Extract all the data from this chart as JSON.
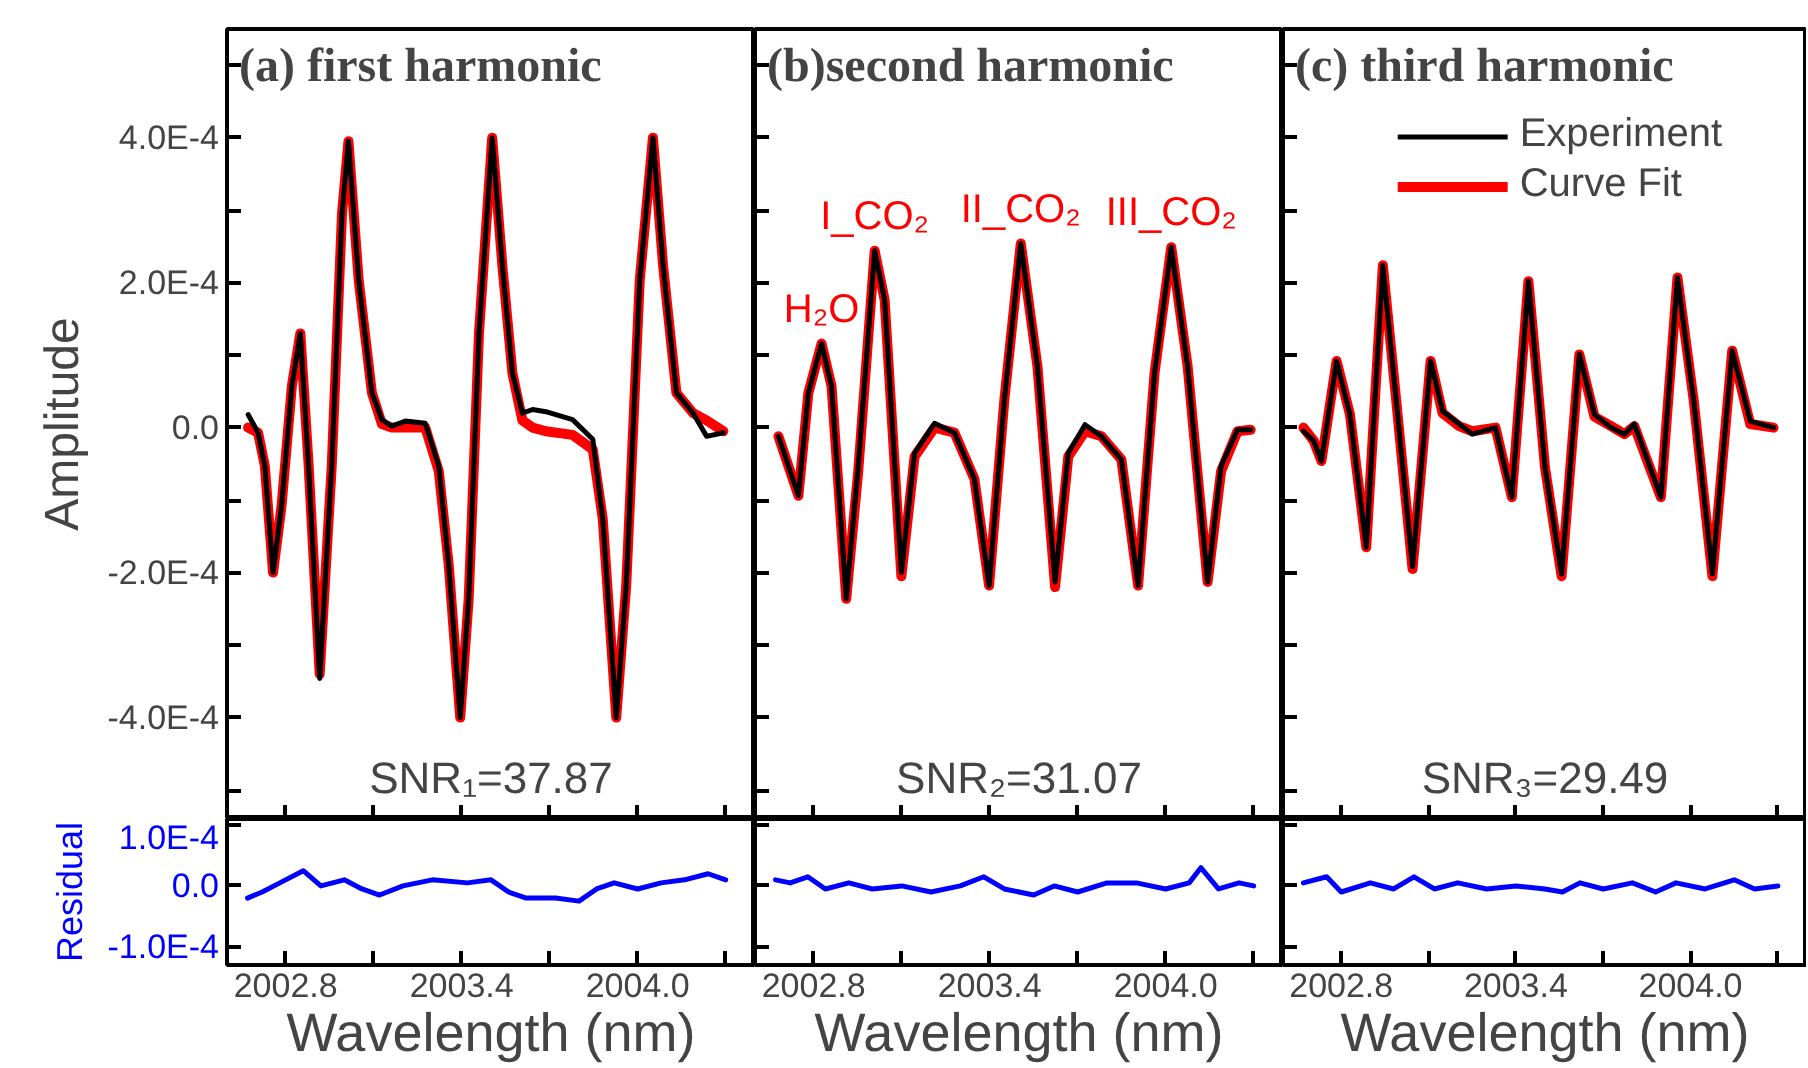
{
  "chart_data": [
    {
      "type": "line",
      "title": "(a) first harmonic",
      "ylabel": "Amplitude",
      "annotations": [
        "SNR₁=37.87"
      ],
      "tick_labels": "y",
      "xlim": [
        2002.6,
        2004.4
      ],
      "ylim": [
        -0.00054,
        0.00055
      ],
      "xticks": [
        {
          "value": 2002.8,
          "label": null
        },
        {
          "value": 2003.1,
          "label": null
        },
        {
          "value": 2003.4,
          "label": null
        },
        {
          "value": 2003.7,
          "label": null
        },
        {
          "value": 2004.0,
          "label": null
        },
        {
          "value": 2004.3,
          "label": null
        }
      ],
      "yticks": [
        {
          "value": -0.0005,
          "label": null
        },
        {
          "value": -0.0004,
          "label": "-4.0E-4"
        },
        {
          "value": -0.0003,
          "label": null
        },
        {
          "value": -0.0002,
          "label": "-2.0E-4"
        },
        {
          "value": -0.0001,
          "label": null
        },
        {
          "value": 0,
          "label": "0.0"
        },
        {
          "value": 0.0001,
          "label": null
        },
        {
          "value": 0.0002,
          "label": "2.0E-4"
        },
        {
          "value": 0.0003,
          "label": null
        },
        {
          "value": 0.0004,
          "label": "4.0E-4"
        },
        {
          "value": 0.0005,
          "label": null
        }
      ],
      "x": [
        2002.672,
        2002.706,
        2002.729,
        2002.757,
        2002.786,
        2002.821,
        2002.85,
        2002.878,
        2002.916,
        2002.957,
        2002.992,
        2003.014,
        2003.049,
        2003.094,
        2003.128,
        2003.162,
        2003.208,
        2003.276,
        2003.322,
        2003.356,
        2003.395,
        2003.424,
        2003.459,
        2003.504,
        2003.539,
        2003.573,
        2003.607,
        2003.642,
        2003.687,
        2003.778,
        2003.847,
        2003.881,
        2003.927,
        2003.961,
        2004.007,
        2004.052,
        2004.087,
        2004.132,
        2004.189,
        2004.235,
        2004.292
      ],
      "series": [
        {
          "color": "#000000",
          "values": [
            1.8e-05,
            -7e-06,
            -5.3e-05,
            -0.0002,
            -0.000108,
            5.7e-05,
            0.00013,
            -5.3e-05,
            -0.000346,
            -5.3e-05,
            0.000295,
            0.000395,
            0.000203,
            4.8e-05,
            1.1e-05,
            2e-06,
            9e-06,
            6e-06,
            -5.3e-05,
            -0.00019,
            -0.0004,
            -0.000236,
            0.00013,
            0.0004,
            0.000222,
            7.5e-05,
            2e-05,
            2.5e-05,
            2.2e-05,
            1.1e-05,
            -1.6e-05,
            -0.000126,
            -0.0004,
            -0.000218,
            0.000203,
            0.0004,
            0.000222,
            4.8e-05,
            2e-05,
            -1.2e-05,
            -7e-06
          ]
        },
        {
          "color": "#ff0000",
          "values": [
            0.0,
            -7e-06,
            -5.3e-05,
            -0.0002,
            -0.000108,
            5.7e-05,
            0.00013,
            -5e-05,
            -0.00034,
            -5.3e-05,
            0.000295,
            0.000395,
            0.000203,
            4.8e-05,
            5e-06,
            0.0,
            0.0,
            0.0,
            -6e-05,
            -0.00019,
            -0.0004,
            -0.000236,
            0.00013,
            0.0004,
            0.000222,
            7.5e-05,
            1e-05,
            0.0,
            -5e-06,
            -1e-05,
            -3e-05,
            -0.000126,
            -0.0004,
            -0.000218,
            0.000203,
            0.0004,
            0.000222,
            4.8e-05,
            2e-05,
            1e-05,
            -5e-06
          ]
        }
      ]
    },
    {
      "type": "line",
      "title": "(b)second harmonic",
      "annotations": [
        "SNR₂=31.07",
        {
          "text": "H₂O",
          "x": 2002.827,
          "y": 0.000116
        },
        {
          "text": "I_CO₂",
          "x": 2003.008,
          "y": 0.000244
        },
        {
          "text": "II_CO₂",
          "x": 2003.506,
          "y": 0.000254
        },
        {
          "text": "III_CO₂",
          "x": 2004.019,
          "y": 0.000249
        }
      ],
      "tick_labels": false,
      "xlim": [
        2002.6,
        2004.4
      ],
      "ylim": [
        -0.00054,
        0.00055
      ],
      "xticks": [
        {
          "value": 2002.8,
          "label": null
        },
        {
          "value": 2003.1,
          "label": null
        },
        {
          "value": 2003.4,
          "label": null
        },
        {
          "value": 2003.7,
          "label": null
        },
        {
          "value": 2004.0,
          "label": null
        },
        {
          "value": 2004.3,
          "label": null
        }
      ],
      "yticks": [
        {
          "value": -0.0005,
          "label": null
        },
        {
          "value": -0.0004,
          "label": null
        },
        {
          "value": -0.0003,
          "label": null
        },
        {
          "value": -0.0002,
          "label": null
        },
        {
          "value": -0.0001,
          "label": null
        },
        {
          "value": 0,
          "label": null
        },
        {
          "value": 0.0001,
          "label": null
        },
        {
          "value": 0.0002,
          "label": null
        },
        {
          "value": 0.0003,
          "label": null
        },
        {
          "value": 0.0004,
          "label": null
        },
        {
          "value": 0.0005,
          "label": null
        }
      ],
      "x": [
        2002.68,
        2002.714,
        2002.748,
        2002.782,
        2002.827,
        2002.861,
        2002.911,
        2002.952,
        2003.008,
        2003.042,
        2003.099,
        2003.144,
        2003.212,
        2003.28,
        2003.348,
        2003.398,
        2003.45,
        2003.506,
        2003.563,
        2003.623,
        2003.668,
        2003.725,
        2003.781,
        2003.849,
        2003.906,
        2003.962,
        2004.019,
        2004.075,
        2004.143,
        2004.189,
        2004.245,
        2004.29
      ],
      "series": [
        {
          "color": "#000000",
          "values": [
            -1.2e-05,
            -5.3e-05,
            -9.4e-05,
            4.8e-05,
            0.000116,
            5.7e-05,
            -0.000236,
            -5.3e-05,
            0.000244,
            0.000176,
            -0.0002,
            -3.5e-05,
            6e-06,
            -7e-06,
            -7.1e-05,
            -0.000218,
            3.8e-05,
            0.000254,
            8.4e-05,
            -0.000213,
            -3.5e-05,
            4e-06,
            -1.2e-05,
            -4.4e-05,
            -0.000218,
            7.5e-05,
            0.000249,
            8.4e-05,
            -0.000213,
            -5.3e-05,
            -3e-06,
            -3e-06
          ]
        },
        {
          "color": "#ff0000",
          "values": [
            -1.2e-05,
            -5.3e-05,
            -9.4e-05,
            4.8e-05,
            0.000116,
            5.7e-05,
            -0.000236,
            -6e-05,
            0.000244,
            0.000176,
            -0.000205,
            -4e-05,
            0.0,
            -7e-06,
            -7.1e-05,
            -0.000218,
            3.8e-05,
            0.000254,
            8.4e-05,
            -0.00022,
            -4e-05,
            -5e-06,
            -1.2e-05,
            -4.4e-05,
            -0.000218,
            7.5e-05,
            0.000249,
            8.4e-05,
            -0.000213,
            -6e-05,
            -5e-06,
            -3e-06
          ]
        }
      ]
    },
    {
      "type": "line",
      "title": "(c) third harmonic",
      "annotations": [
        "SNR₃=29.49"
      ],
      "tick_labels": false,
      "legend": "top right",
      "xlim": [
        2002.6,
        2004.4
      ],
      "ylim": [
        -0.00054,
        0.00055
      ],
      "xticks": [
        {
          "value": 2002.8,
          "label": null
        },
        {
          "value": 2003.1,
          "label": null
        },
        {
          "value": 2003.4,
          "label": null
        },
        {
          "value": 2003.7,
          "label": null
        },
        {
          "value": 2004.0,
          "label": null
        },
        {
          "value": 2004.3,
          "label": null
        }
      ],
      "yticks": [
        {
          "value": -0.0005,
          "label": null
        },
        {
          "value": -0.0004,
          "label": null
        },
        {
          "value": -0.0003,
          "label": null
        },
        {
          "value": -0.0002,
          "label": null
        },
        {
          "value": -0.0001,
          "label": null
        },
        {
          "value": 0,
          "label": null
        },
        {
          "value": 0.0001,
          "label": null
        },
        {
          "value": 0.0002,
          "label": null
        },
        {
          "value": 0.0003,
          "label": null
        },
        {
          "value": 0.0004,
          "label": null
        },
        {
          "value": 0.0005,
          "label": null
        }
      ],
      "x": [
        2002.67,
        2002.705,
        2002.732,
        2002.784,
        2002.83,
        2002.886,
        2002.943,
        2002.989,
        2003.045,
        2003.107,
        2003.148,
        2003.205,
        2003.25,
        2003.33,
        2003.386,
        2003.443,
        2003.5,
        2003.557,
        2003.618,
        2003.67,
        2003.727,
        2003.773,
        2003.807,
        2003.898,
        2003.955,
        2004.011,
        2004.075,
        2004.143,
        2004.205,
        2004.285
      ],
      "series": [
        {
          "name": "Experiment",
          "color": "#000000",
          "values": [
            -5e-06,
            -1.8e-05,
            -4.6e-05,
            9.2e-05,
            1.8e-05,
            -0.000165,
            0.000224,
            3.7e-05,
            -0.000192,
            9.2e-05,
            2.3e-05,
            5e-06,
            -9e-06,
            0.0,
            -9.6e-05,
            0.000202,
            -5.5e-05,
            -0.000202,
            0.000101,
            1.8e-05,
            0.0,
            -9e-06,
            5e-06,
            -9.6e-05,
            0.000207,
            3.7e-05,
            -0.000202,
            0.000106,
            9e-06,
            0.0
          ]
        },
        {
          "name": "Curve Fit",
          "color": "#ff0000",
          "values": [
            0.0,
            -1.8e-05,
            -4.6e-05,
            9.2e-05,
            1.8e-05,
            -0.000165,
            0.000224,
            3.7e-05,
            -0.000195,
            9.2e-05,
            2e-05,
            2e-06,
            -5e-06,
            0.0,
            -9.6e-05,
            0.000202,
            -5.5e-05,
            -0.000205,
            0.000101,
            1.5e-05,
            2e-06,
            -9e-06,
            2e-06,
            -9.6e-05,
            0.000207,
            3.7e-05,
            -0.000205,
            0.000106,
            5e-06,
            0.0
          ]
        }
      ]
    },
    {
      "type": "line",
      "ylabel": "Residual",
      "xlabel": "Wavelength (nm)",
      "xlim": [
        2002.6,
        2004.4
      ],
      "ylim": [
        -0.00013,
        0.00011
      ],
      "xticks": [
        {
          "value": 2002.8,
          "label": "2002.8"
        },
        {
          "value": 2003.1,
          "label": null
        },
        {
          "value": 2003.4,
          "label": "2003.4"
        },
        {
          "value": 2003.7,
          "label": null
        },
        {
          "value": 2004.0,
          "label": "2004.0"
        },
        {
          "value": 2004.3,
          "label": null
        }
      ],
      "yticks": [
        {
          "value": -0.0001,
          "label": "-1.0E-4"
        },
        {
          "value": 0,
          "label": "0.0"
        },
        {
          "value": 0.0001,
          "label": "1.0E-4"
        }
      ],
      "x": [
        2002.67,
        2002.72,
        2002.78,
        2002.86,
        2002.92,
        2003.0,
        2003.06,
        2003.12,
        2003.2,
        2003.3,
        2003.42,
        2003.5,
        2003.56,
        2003.62,
        2003.72,
        2003.8,
        2003.86,
        2003.92,
        2004.0,
        2004.08,
        2004.16,
        2004.24,
        2004.3
      ],
      "series": [
        {
          "color": "#0000ff",
          "values": [
            -2e-05,
            -1e-05,
            5e-06,
            2.5e-05,
            0.0,
            1e-05,
            -5e-06,
            -1.5e-05,
            0.0,
            1e-05,
            5e-06,
            1e-05,
            -1e-05,
            -2e-05,
            -2e-05,
            -2.5e-05,
            -5e-06,
            5e-06,
            -5e-06,
            5e-06,
            1e-05,
            2e-05,
            1e-05
          ]
        }
      ]
    },
    {
      "type": "line",
      "xlabel": "Wavelength (nm)",
      "tick_labels": "x",
      "xlim": [
        2002.6,
        2004.4
      ],
      "ylim": [
        -0.00013,
        0.00011
      ],
      "xticks": [
        {
          "value": 2002.8,
          "label": "2002.8"
        },
        {
          "value": 2003.1,
          "label": null
        },
        {
          "value": 2003.4,
          "label": "2003.4"
        },
        {
          "value": 2003.7,
          "label": null
        },
        {
          "value": 2004.0,
          "label": "2004.0"
        },
        {
          "value": 2004.3,
          "label": null
        }
      ],
      "yticks": [
        {
          "value": -0.0001,
          "label": null
        },
        {
          "value": 0,
          "label": null
        },
        {
          "value": 0.0001,
          "label": null
        }
      ],
      "x": [
        2002.67,
        2002.72,
        2002.78,
        2002.84,
        2002.92,
        2003.0,
        2003.1,
        2003.2,
        2003.3,
        2003.38,
        2003.45,
        2003.55,
        2003.62,
        2003.7,
        2003.8,
        2003.9,
        2004.0,
        2004.08,
        2004.12,
        2004.18,
        2004.25,
        2004.3
      ],
      "series": [
        {
          "color": "#0000ff",
          "values": [
            1e-05,
            5e-06,
            1.5e-05,
            -5e-06,
            5e-06,
            -5e-06,
            0.0,
            -1e-05,
            0.0,
            1.5e-05,
            -5e-06,
            -1.5e-05,
            0.0,
            -1e-05,
            5e-06,
            5e-06,
            -5e-06,
            5e-06,
            3e-05,
            -5e-06,
            5e-06,
            0.0
          ]
        }
      ]
    },
    {
      "type": "line",
      "xlabel": "Wavelength (nm)",
      "tick_labels": "x",
      "xlim": [
        2002.6,
        2004.4
      ],
      "ylim": [
        -0.00013,
        0.00011
      ],
      "xticks": [
        {
          "value": 2002.8,
          "label": "2002.8"
        },
        {
          "value": 2003.1,
          "label": null
        },
        {
          "value": 2003.4,
          "label": "2003.4"
        },
        {
          "value": 2003.7,
          "label": null
        },
        {
          "value": 2004.0,
          "label": "2004.0"
        },
        {
          "value": 2004.3,
          "label": null
        }
      ],
      "yticks": [
        {
          "value": -0.0001,
          "label": null
        },
        {
          "value": 0,
          "label": null
        },
        {
          "value": 0.0001,
          "label": null
        }
      ],
      "x": [
        2002.67,
        2002.75,
        2002.8,
        2002.9,
        2002.98,
        2003.05,
        2003.12,
        2003.2,
        2003.3,
        2003.4,
        2003.5,
        2003.56,
        2003.62,
        2003.7,
        2003.8,
        2003.88,
        2003.95,
        2004.05,
        2004.15,
        2004.22,
        2004.3
      ],
      "series": [
        {
          "color": "#0000ff",
          "values": [
            5e-06,
            1.5e-05,
            -1e-05,
            5e-06,
            -5e-06,
            1.5e-05,
            -5e-06,
            5e-06,
            -5e-06,
            0.0,
            -5e-06,
            -1e-05,
            5e-06,
            -5e-06,
            5e-06,
            -1e-05,
            5e-06,
            -5e-06,
            1e-05,
            -5e-06,
            0.0
          ]
        }
      ]
    }
  ]
}
